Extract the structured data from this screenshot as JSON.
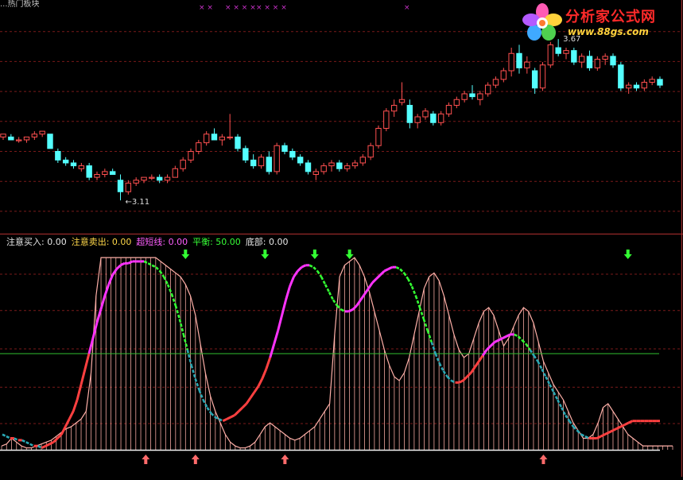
{
  "window": {
    "title": "...热门板块"
  },
  "logo": {
    "line1": "分析家公式网",
    "line2": "www.88gs.com"
  },
  "colors": {
    "background": "#000000",
    "up": "#ff5050",
    "down": "#54ffff",
    "grid": "#7a1a1a",
    "axis_border": "#b03030",
    "balance_line": "#2fbf2f",
    "markers": "#cc33cc",
    "buy_arrow": "#ff6a6a",
    "sell_arrow": "#33ff33",
    "area_fill": "#ffb0a8",
    "line_magenta": "#ff33ff",
    "line_green": "#33ff33",
    "line_red": "#ff4040",
    "line_cyan": "#2aa9b5"
  },
  "legend": [
    {
      "label": "注意买入:",
      "value": "0.00",
      "color": "#e8e8e8"
    },
    {
      "label": "注意卖出:",
      "value": "0.00",
      "color": "#ffd84a"
    },
    {
      "label": "超短线:",
      "value": "0.00",
      "color": "#ff5fff"
    },
    {
      "label": "平衡:",
      "value": "50.00",
      "color": "#37ff37"
    },
    {
      "label": "底部:",
      "value": "0.00",
      "color": "#e8e8e8"
    }
  ],
  "chart_data": [
    {
      "type": "candlestick",
      "title": "",
      "annotations": [
        {
          "text": "3.67",
          "at_index": 71,
          "kind": "high"
        },
        {
          "text": "3.11",
          "at_index": 15,
          "kind": "low"
        }
      ],
      "top_markers": [
        "× ×",
        "× × × ×",
        "× × × ×",
        "×"
      ],
      "ylim": [
        3.0,
        3.8
      ],
      "candles": [
        [
          3.33,
          3.34,
          3.32,
          3.34
        ],
        [
          3.33,
          3.34,
          3.32,
          3.32
        ],
        [
          3.32,
          3.33,
          3.31,
          3.32
        ],
        [
          3.32,
          3.33,
          3.31,
          3.33
        ],
        [
          3.33,
          3.35,
          3.32,
          3.34
        ],
        [
          3.34,
          3.35,
          3.33,
          3.35
        ],
        [
          3.34,
          3.34,
          3.29,
          3.29
        ],
        [
          3.28,
          3.29,
          3.24,
          3.25
        ],
        [
          3.25,
          3.26,
          3.23,
          3.24
        ],
        [
          3.24,
          3.25,
          3.22,
          3.23
        ],
        [
          3.22,
          3.24,
          3.21,
          3.23
        ],
        [
          3.23,
          3.24,
          3.18,
          3.19
        ],
        [
          3.19,
          3.21,
          3.18,
          3.2
        ],
        [
          3.2,
          3.22,
          3.19,
          3.21
        ],
        [
          3.21,
          3.22,
          3.2,
          3.2
        ],
        [
          3.18,
          3.2,
          3.11,
          3.14
        ],
        [
          3.14,
          3.18,
          3.13,
          3.17
        ],
        [
          3.17,
          3.19,
          3.16,
          3.18
        ],
        [
          3.18,
          3.19,
          3.17,
          3.19
        ],
        [
          3.19,
          3.2,
          3.18,
          3.19
        ],
        [
          3.19,
          3.2,
          3.17,
          3.18
        ],
        [
          3.18,
          3.2,
          3.17,
          3.19
        ],
        [
          3.19,
          3.23,
          3.19,
          3.22
        ],
        [
          3.22,
          3.26,
          3.21,
          3.25
        ],
        [
          3.25,
          3.29,
          3.24,
          3.28
        ],
        [
          3.28,
          3.32,
          3.27,
          3.31
        ],
        [
          3.31,
          3.35,
          3.3,
          3.34
        ],
        [
          3.34,
          3.36,
          3.32,
          3.32
        ],
        [
          3.32,
          3.34,
          3.3,
          3.33
        ],
        [
          3.33,
          3.41,
          3.32,
          3.33
        ],
        [
          3.33,
          3.34,
          3.28,
          3.29
        ],
        [
          3.29,
          3.3,
          3.24,
          3.25
        ],
        [
          3.25,
          3.27,
          3.22,
          3.23
        ],
        [
          3.23,
          3.27,
          3.22,
          3.26
        ],
        [
          3.26,
          3.28,
          3.2,
          3.21
        ],
        [
          3.21,
          3.31,
          3.2,
          3.3
        ],
        [
          3.3,
          3.31,
          3.27,
          3.28
        ],
        [
          3.28,
          3.29,
          3.25,
          3.26
        ],
        [
          3.26,
          3.27,
          3.23,
          3.24
        ],
        [
          3.24,
          3.25,
          3.2,
          3.21
        ],
        [
          3.2,
          3.22,
          3.18,
          3.21
        ],
        [
          3.21,
          3.24,
          3.2,
          3.23
        ],
        [
          3.23,
          3.25,
          3.21,
          3.24
        ],
        [
          3.24,
          3.25,
          3.21,
          3.22
        ],
        [
          3.22,
          3.24,
          3.21,
          3.23
        ],
        [
          3.23,
          3.25,
          3.22,
          3.24
        ],
        [
          3.24,
          3.27,
          3.23,
          3.26
        ],
        [
          3.26,
          3.31,
          3.25,
          3.3
        ],
        [
          3.3,
          3.37,
          3.29,
          3.36
        ],
        [
          3.36,
          3.43,
          3.35,
          3.42
        ],
        [
          3.42,
          3.46,
          3.4,
          3.44
        ],
        [
          3.45,
          3.52,
          3.44,
          3.46
        ],
        [
          3.44,
          3.46,
          3.36,
          3.38
        ],
        [
          3.38,
          3.41,
          3.36,
          3.4
        ],
        [
          3.4,
          3.43,
          3.39,
          3.42
        ],
        [
          3.41,
          3.42,
          3.37,
          3.38
        ],
        [
          3.38,
          3.42,
          3.37,
          3.41
        ],
        [
          3.41,
          3.45,
          3.4,
          3.44
        ],
        [
          3.44,
          3.47,
          3.43,
          3.46
        ],
        [
          3.46,
          3.49,
          3.45,
          3.48
        ],
        [
          3.48,
          3.51,
          3.46,
          3.47
        ],
        [
          3.46,
          3.49,
          3.44,
          3.48
        ],
        [
          3.48,
          3.52,
          3.47,
          3.51
        ],
        [
          3.51,
          3.54,
          3.5,
          3.53
        ],
        [
          3.53,
          3.57,
          3.52,
          3.56
        ],
        [
          3.56,
          3.64,
          3.54,
          3.62
        ],
        [
          3.62,
          3.65,
          3.55,
          3.57
        ],
        [
          3.57,
          3.61,
          3.55,
          3.59
        ],
        [
          3.56,
          3.57,
          3.48,
          3.5
        ],
        [
          3.5,
          3.59,
          3.49,
          3.58
        ],
        [
          3.58,
          3.66,
          3.57,
          3.65
        ],
        [
          3.64,
          3.67,
          3.61,
          3.62
        ],
        [
          3.62,
          3.64,
          3.6,
          3.63
        ],
        [
          3.63,
          3.64,
          3.58,
          3.59
        ],
        [
          3.59,
          3.62,
          3.57,
          3.61
        ],
        [
          3.61,
          3.63,
          3.56,
          3.57
        ],
        [
          3.57,
          3.61,
          3.56,
          3.6
        ],
        [
          3.6,
          3.62,
          3.58,
          3.61
        ],
        [
          3.61,
          3.62,
          3.57,
          3.58
        ],
        [
          3.58,
          3.59,
          3.49,
          3.5
        ],
        [
          3.5,
          3.52,
          3.48,
          3.51
        ],
        [
          3.51,
          3.52,
          3.49,
          3.5
        ],
        [
          3.5,
          3.53,
          3.49,
          3.52
        ],
        [
          3.52,
          3.54,
          3.51,
          3.53
        ],
        [
          3.53,
          3.54,
          3.5,
          3.51
        ]
      ]
    },
    {
      "type": "line",
      "title": "",
      "ylim": [
        0,
        105
      ],
      "balance_level": 50,
      "buy_signals": [
        29,
        39,
        57,
        109,
        140
      ],
      "sell_signals": [
        37,
        53,
        63,
        70,
        126,
        157,
        161,
        177
      ],
      "series": [
        {
          "name": "超短线",
          "values": [
            8,
            7,
            6,
            6,
            5,
            5,
            4,
            3,
            2,
            2,
            1,
            2,
            3,
            4,
            6,
            8,
            12,
            16,
            20,
            26,
            34,
            42,
            50,
            58,
            66,
            73,
            80,
            86,
            91,
            94,
            96,
            97,
            97,
            98,
            98,
            98,
            98,
            97,
            96,
            95,
            93,
            90,
            86,
            81,
            75,
            68,
            60,
            52,
            44,
            37,
            31,
            26,
            22,
            19,
            17,
            16,
            15,
            16,
            17,
            18,
            20,
            22,
            24,
            27,
            30,
            33,
            37,
            42,
            48,
            55,
            62,
            70,
            78,
            85,
            90,
            93,
            95,
            96,
            96,
            95,
            93,
            90,
            86,
            82,
            78,
            75,
            73,
            72,
            72,
            73,
            75,
            78,
            81,
            84,
            87,
            89,
            91,
            93,
            94,
            95,
            95,
            94,
            92,
            89,
            85,
            80,
            74,
            68,
            62,
            56,
            50,
            45,
            41,
            38,
            36,
            35,
            35,
            36,
            38,
            40,
            43,
            46,
            49,
            52,
            54,
            56,
            57,
            58,
            59,
            60,
            60,
            59,
            57,
            55,
            52,
            49,
            46,
            42,
            38,
            34,
            30,
            26,
            22,
            18,
            15,
            12,
            10,
            8,
            7,
            6,
            6,
            6,
            7,
            8,
            9,
            10,
            11,
            12,
            13,
            14,
            15,
            15,
            15,
            15,
            15,
            15,
            15,
            15
          ]
        }
      ],
      "area": [
        2,
        3,
        6,
        4,
        2,
        1,
        1,
        2,
        3,
        4,
        5,
        7,
        9,
        11,
        12,
        14,
        16,
        20,
        40,
        80,
        100,
        100,
        100,
        100,
        100,
        100,
        100,
        100,
        100,
        100,
        100,
        100,
        98,
        96,
        94,
        92,
        90,
        86,
        80,
        70,
        55,
        40,
        28,
        20,
        14,
        8,
        4,
        2,
        1,
        1,
        2,
        4,
        8,
        12,
        14,
        12,
        10,
        8,
        6,
        5,
        6,
        8,
        10,
        12,
        16,
        20,
        24,
        60,
        90,
        96,
        98,
        100,
        96,
        90,
        82,
        72,
        62,
        52,
        44,
        38,
        36,
        40,
        48,
        60,
        72,
        84,
        90,
        92,
        88,
        80,
        70,
        60,
        52,
        48,
        50,
        58,
        66,
        72,
        74,
        70,
        62,
        54,
        58,
        64,
        70,
        74,
        72,
        66,
        56,
        46,
        40,
        34,
        30,
        26,
        20,
        14,
        10,
        6,
        6,
        8,
        14,
        22,
        24,
        20,
        16,
        12,
        8,
        6,
        4,
        2,
        2,
        2,
        2,
        2,
        2,
        2
      ]
    }
  ]
}
